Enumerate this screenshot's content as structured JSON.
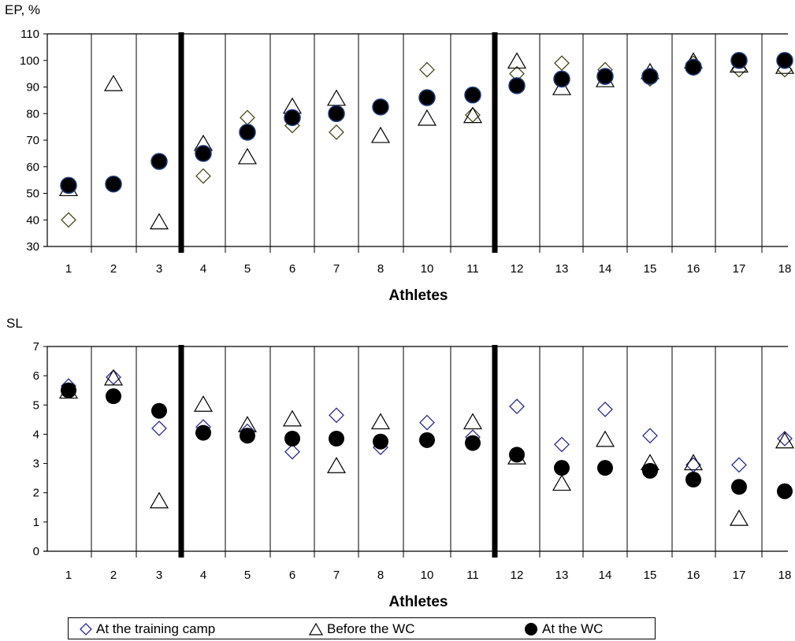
{
  "chart_data": [
    {
      "type": "scatter",
      "ylabel": "EP, %",
      "xlabel": "Athletes",
      "ylim": [
        30,
        110
      ],
      "yticks": [
        30,
        40,
        50,
        60,
        70,
        80,
        90,
        100,
        110
      ],
      "categories": [
        "1",
        "2",
        "3",
        "4",
        "5",
        "6",
        "7",
        "8",
        "10",
        "11",
        "12",
        "13",
        "14",
        "15",
        "16",
        "17",
        "18"
      ],
      "group_separators_after": [
        "3",
        "11"
      ],
      "grid": "vertical lines between athletes",
      "series": [
        {
          "name": "At the training camp",
          "marker": "diamond",
          "values": [
            40,
            null,
            null,
            56.5,
            78.5,
            75.5,
            73,
            null,
            96.5,
            79.5,
            95,
            99,
            96.5,
            93,
            99,
            96.5,
            96.5
          ]
        },
        {
          "name": "Before the WC",
          "marker": "triangle",
          "values": [
            51.5,
            91,
            39,
            68.5,
            63.5,
            82.5,
            85.5,
            71.5,
            78,
            79,
            99.5,
            89.5,
            92.5,
            95.5,
            99.5,
            98,
            97.5
          ]
        },
        {
          "name": "At the WC",
          "marker": "circle",
          "values": [
            53,
            53.5,
            62,
            65,
            73,
            78.5,
            80,
            82.5,
            86,
            87,
            90.5,
            93,
            94,
            94,
            97.5,
            100,
            100
          ]
        }
      ]
    },
    {
      "type": "scatter",
      "ylabel": "SL",
      "xlabel": "Athletes",
      "ylim": [
        0,
        7
      ],
      "yticks": [
        0,
        1,
        2,
        3,
        4,
        5,
        6,
        7
      ],
      "categories": [
        "1",
        "2",
        "3",
        "4",
        "5",
        "6",
        "7",
        "8",
        "10",
        "11",
        "12",
        "13",
        "14",
        "15",
        "16",
        "17",
        "18"
      ],
      "group_separators_after": [
        "3",
        "11"
      ],
      "grid": "vertical lines between athletes",
      "series": [
        {
          "name": "At the training camp",
          "marker": "diamond",
          "values": [
            5.65,
            5.95,
            4.2,
            4.25,
            4.1,
            3.4,
            4.65,
            3.55,
            4.4,
            3.9,
            4.95,
            3.65,
            4.85,
            3.95,
            2.95,
            2.95,
            3.85
          ]
        },
        {
          "name": "Before the WC",
          "marker": "triangle",
          "values": [
            5.45,
            5.9,
            1.7,
            5.0,
            4.3,
            4.5,
            2.9,
            4.4,
            null,
            4.4,
            3.2,
            2.3,
            3.8,
            3.0,
            3.0,
            1.1,
            3.75
          ]
        },
        {
          "name": "At the WC",
          "marker": "circle",
          "values": [
            5.5,
            5.3,
            4.8,
            4.05,
            3.95,
            3.85,
            3.85,
            3.75,
            3.8,
            3.7,
            3.3,
            2.85,
            2.85,
            2.75,
            2.45,
            2.2,
            2.05
          ]
        }
      ]
    }
  ],
  "legend": {
    "items": [
      {
        "label": "At the training camp",
        "icon": "diamond-icon"
      },
      {
        "label": "Before the WC",
        "icon": "triangle-icon"
      },
      {
        "label": "At the WC",
        "icon": "circle-icon"
      }
    ]
  },
  "colors": {
    "diamond_top": "#4a4a1e",
    "diamond_bottom": "#2b2b8f",
    "triangle": "#000000",
    "circle_fill": "#000000",
    "circle_stroke_top": "#1f3a78"
  }
}
